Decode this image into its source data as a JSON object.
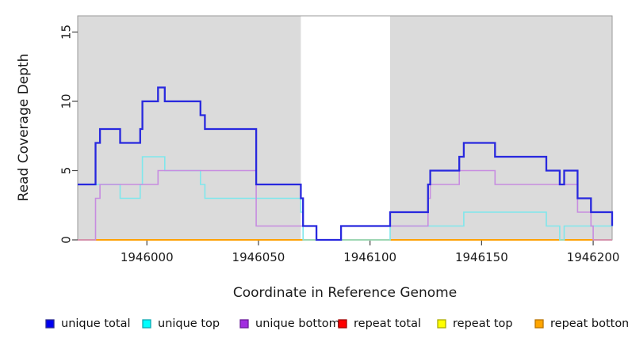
{
  "chart_data": {
    "type": "line",
    "step": "post",
    "title": "",
    "xlabel": "Coordinate in Reference Genome",
    "ylabel": "Read Coverage Depth",
    "xlim": [
      1945969,
      1946208.5
    ],
    "ylim": [
      0,
      16.17
    ],
    "xticks": [
      1946000,
      1946050,
      1946100,
      1946150,
      1946200
    ],
    "yticks": [
      0,
      5,
      10,
      15
    ],
    "grid": false,
    "legend_position": "bottom",
    "plot_background": {
      "base": "#FFFFFF",
      "band_color": "#DBDBDB",
      "gray_bands": [
        [
          1945969,
          1946069
        ],
        [
          1946109,
          1946208.5
        ]
      ],
      "white_gap": [
        1946069,
        1946109
      ]
    },
    "axis_color": "#444444",
    "text_color": "#1A1A1A",
    "box_color": "#999999",
    "series": [
      {
        "name": "unique total",
        "line_color": "#2828DE",
        "line_width": 2.3,
        "data": [
          [
            1945969,
            4
          ],
          [
            1945977,
            7
          ],
          [
            1945979,
            8
          ],
          [
            1945988,
            7
          ],
          [
            1945997,
            8
          ],
          [
            1945998,
            10
          ],
          [
            1946005,
            11
          ],
          [
            1946008,
            10
          ],
          [
            1946024,
            9
          ],
          [
            1946026,
            8
          ],
          [
            1946049,
            4
          ],
          [
            1946069,
            3
          ],
          [
            1946070,
            1
          ],
          [
            1946076,
            0
          ],
          [
            1946087,
            1
          ],
          [
            1946109,
            2
          ],
          [
            1946126,
            4
          ],
          [
            1946127,
            5
          ],
          [
            1946140,
            6
          ],
          [
            1946142,
            7
          ],
          [
            1946156,
            6
          ],
          [
            1946179,
            5
          ],
          [
            1946185,
            4
          ],
          [
            1946187,
            5
          ],
          [
            1946193,
            3
          ],
          [
            1946199,
            2
          ],
          [
            1946208.5,
            1
          ]
        ]
      },
      {
        "name": "unique top",
        "line_color": "#7FE7EC",
        "line_width": 1.6,
        "data": [
          [
            1945969,
            4
          ],
          [
            1945988,
            3
          ],
          [
            1945997,
            4
          ],
          [
            1945998,
            6
          ],
          [
            1946008,
            5
          ],
          [
            1946024,
            4
          ],
          [
            1946026,
            3
          ],
          [
            1946069,
            2
          ],
          [
            1946070,
            0
          ],
          [
            1946109,
            1
          ],
          [
            1946142,
            2
          ],
          [
            1946179,
            1
          ],
          [
            1946185,
            0
          ],
          [
            1946187,
            1
          ],
          [
            1946208.5,
            1
          ]
        ]
      },
      {
        "name": "unique bottom",
        "line_color": "#C78CE0",
        "line_width": 1.6,
        "data": [
          [
            1945969,
            0
          ],
          [
            1945977,
            3
          ],
          [
            1945979,
            4
          ],
          [
            1946005,
            5
          ],
          [
            1946049,
            1
          ],
          [
            1946076,
            0
          ],
          [
            1946087,
            1
          ],
          [
            1946126,
            3
          ],
          [
            1946127,
            4
          ],
          [
            1946140,
            5
          ],
          [
            1946156,
            4
          ],
          [
            1946193,
            2
          ],
          [
            1946199,
            1
          ],
          [
            1946200,
            0
          ],
          [
            1946208.5,
            0
          ]
        ]
      },
      {
        "name": "repeat total",
        "line_color": "#E00000",
        "line_width": 1.4,
        "data": [
          [
            1945969,
            0
          ],
          [
            1946208.5,
            0
          ]
        ]
      },
      {
        "name": "repeat top",
        "line_color": "#FFFF00",
        "line_width": 1.4,
        "data": [
          [
            1945969,
            0
          ],
          [
            1946208.5,
            0
          ]
        ]
      },
      {
        "name": "repeat bottom",
        "line_color": "#FF9E00",
        "line_width": 1.8,
        "data": [
          [
            1945969,
            0
          ],
          [
            1946208.5,
            0
          ]
        ]
      }
    ],
    "draw_order": [
      "repeat total",
      "repeat top",
      "repeat bottom",
      "unique top",
      "unique bottom",
      "unique total"
    ],
    "legend": [
      {
        "label": "unique total",
        "fill": "#0000F0",
        "border": "#2A2A90"
      },
      {
        "label": "unique top",
        "fill": "#00FFFF",
        "border": "#0FA8B0"
      },
      {
        "label": "unique bottom",
        "fill": "#A12CE0",
        "border": "#6A1B9A"
      },
      {
        "label": "repeat total",
        "fill": "#FF0000",
        "border": "#A00000"
      },
      {
        "label": "repeat top",
        "fill": "#FFFF00",
        "border": "#ABAB00"
      },
      {
        "label": "repeat bottom",
        "fill": "#FFA500",
        "border": "#B87400"
      }
    ]
  }
}
